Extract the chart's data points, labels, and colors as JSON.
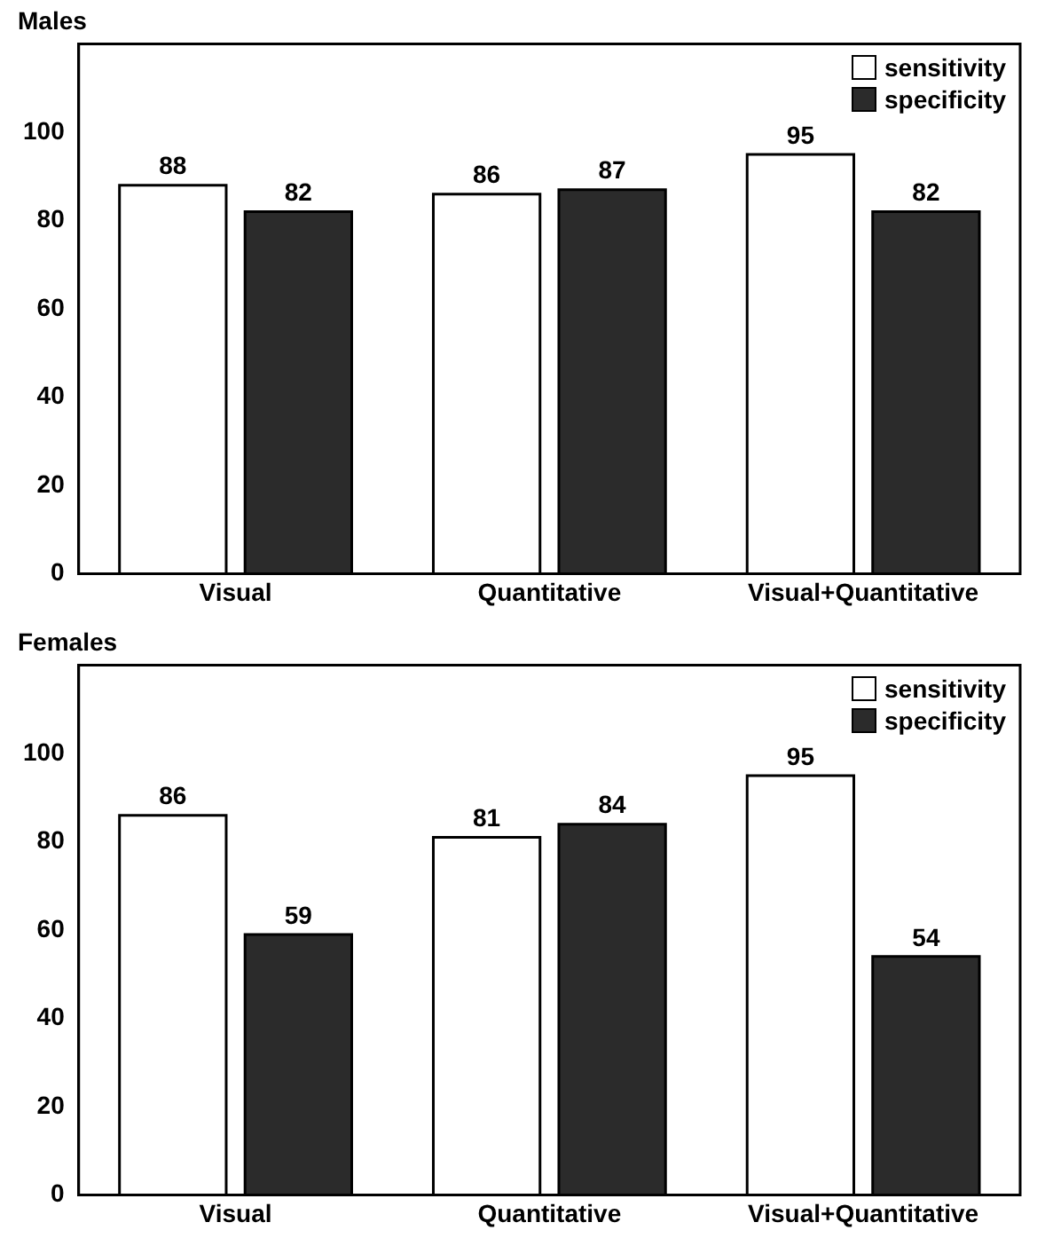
{
  "chart_data": [
    {
      "type": "bar",
      "title": "Males",
      "categories": [
        "Visual",
        "Quantitative",
        "Visual+Quantitative"
      ],
      "series": [
        {
          "name": "sensitivity",
          "color": "#ffffff",
          "values": [
            88,
            86,
            95
          ]
        },
        {
          "name": "specificity",
          "color": "#2b2b2b",
          "values": [
            82,
            87,
            82
          ]
        }
      ],
      "ylim": [
        0,
        120
      ],
      "yticks": [
        0,
        20,
        40,
        60,
        80,
        100
      ],
      "grid": false,
      "legend": "top right",
      "data_labels": true
    },
    {
      "type": "bar",
      "title": "Females",
      "categories": [
        "Visual",
        "Quantitative",
        "Visual+Quantitative"
      ],
      "series": [
        {
          "name": "sensitivity",
          "color": "#ffffff",
          "values": [
            86,
            81,
            95
          ]
        },
        {
          "name": "specificity",
          "color": "#2b2b2b",
          "values": [
            59,
            84,
            54
          ]
        }
      ],
      "ylim": [
        0,
        120
      ],
      "yticks": [
        0,
        20,
        40,
        60,
        80,
        100
      ],
      "grid": false,
      "legend": "top right",
      "data_labels": true
    }
  ]
}
